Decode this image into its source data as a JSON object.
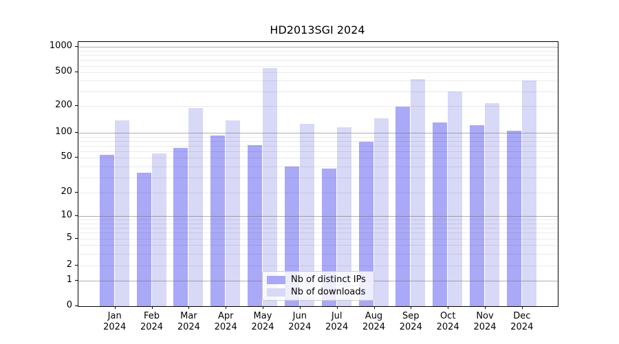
{
  "title": "HD2013SGI 2024",
  "colors": {
    "distinct_ips_bar": "#a9a9f7",
    "downloads_bar": "#d8d8f7",
    "axis": "#000000",
    "major_grid": "#b0b0b0",
    "minor_grid": "#ebebeb"
  },
  "legend": {
    "entries": [
      {
        "label": "Nb of distinct IPs",
        "color": "#a9a9f7"
      },
      {
        "label": "Nb of downloads",
        "color": "#d8d8f7"
      }
    ]
  },
  "chart_data": {
    "type": "bar",
    "title": "HD2013SGI 2024",
    "xlabel": "",
    "ylabel": "",
    "yscale": "symlog",
    "ylim": [
      0,
      1000
    ],
    "yticks": [
      0,
      1,
      2,
      5,
      10,
      20,
      50,
      100,
      200,
      500,
      1000
    ],
    "grid": true,
    "legend_position": "lower-center",
    "categories": [
      "Jan 2024",
      "Feb 2024",
      "Mar 2024",
      "Apr 2024",
      "May 2024",
      "Jun 2024",
      "Jul 2024",
      "Aug 2024",
      "Sep 2024",
      "Oct 2024",
      "Nov 2024",
      "Dec 2024"
    ],
    "series": [
      {
        "name": "Nb of distinct IPs",
        "color": "#a9a9f7",
        "values": [
          54,
          34,
          66,
          93,
          71,
          40,
          38,
          78,
          198,
          130,
          121,
          106
        ]
      },
      {
        "name": "Nb of downloads",
        "color": "#d8d8f7",
        "values": [
          137,
          56,
          191,
          139,
          560,
          126,
          116,
          146,
          420,
          298,
          215,
          400
        ]
      }
    ]
  }
}
